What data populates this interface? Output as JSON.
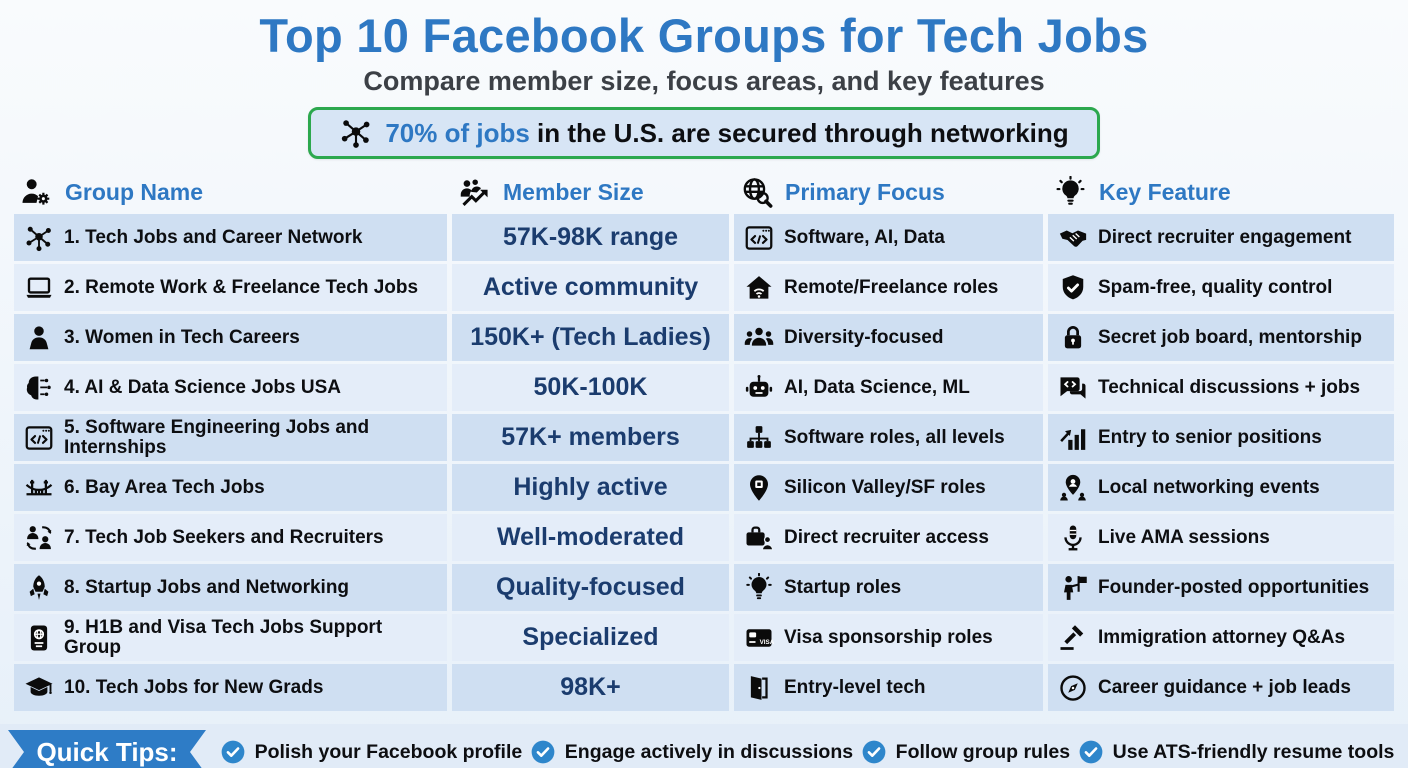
{
  "header": {
    "title": "Top 10 Facebook Groups for Tech Jobs",
    "subtitle": "Compare member size, focus areas, and key features",
    "callout": {
      "icon": "network",
      "highlight": "70% of jobs",
      "rest": " in the U.S. are secured through networking"
    }
  },
  "table": {
    "columns": [
      {
        "label": "Group Name",
        "icon": "user-gear"
      },
      {
        "label": "Member Size",
        "icon": "people-growth"
      },
      {
        "label": "Primary Focus",
        "icon": "globe-search"
      },
      {
        "label": "Key Feature",
        "icon": "lightbulb"
      }
    ],
    "rows": [
      {
        "name": "1. Tech Jobs and Career Network",
        "name_icon": "network",
        "size": "57K-98K range",
        "focus": "Software, AI, Data",
        "focus_icon": "code-window",
        "feature": "Direct recruiter engagement",
        "feature_icon": "handshake"
      },
      {
        "name": "2. Remote Work & Freelance Tech Jobs",
        "name_icon": "laptop",
        "size": "Active community",
        "focus": "Remote/Freelance roles",
        "focus_icon": "house-wifi",
        "feature": "Spam-free, quality control",
        "feature_icon": "shield-check"
      },
      {
        "name": "3. Women in Tech Careers",
        "name_icon": "woman",
        "size": "150K+ (Tech Ladies)",
        "focus": "Diversity-focused",
        "focus_icon": "users-group",
        "feature": "Secret job board, mentorship",
        "feature_icon": "lock"
      },
      {
        "name": "4. AI & Data Science Jobs USA",
        "name_icon": "brain-circuit",
        "size": "50K-100K",
        "focus": "AI, Data Science, ML",
        "focus_icon": "robot",
        "feature": "Technical discussions + jobs",
        "feature_icon": "code-chat"
      },
      {
        "name": "5. Software Engineering Jobs and Internships",
        "name_icon": "code-window",
        "size": "57K+ members",
        "focus": "Software roles, all levels",
        "focus_icon": "org-cubes",
        "feature": "Entry to senior positions",
        "feature_icon": "chart-up"
      },
      {
        "name": "6. Bay Area Tech Jobs",
        "name_icon": "bridge",
        "size": "Highly active",
        "focus": "Silicon Valley/SF roles",
        "focus_icon": "map-pin-chip",
        "feature": "Local networking events",
        "feature_icon": "person-pin-group"
      },
      {
        "name": "7. Tech Job Seekers and Recruiters",
        "name_icon": "people-exchange",
        "size": "Well-moderated",
        "focus": "Direct recruiter access",
        "focus_icon": "briefcase-user",
        "feature": "Live AMA sessions",
        "feature_icon": "microphone"
      },
      {
        "name": "8. Startup Jobs and Networking",
        "name_icon": "rocket",
        "size": "Quality-focused",
        "focus": "Startup roles",
        "focus_icon": "lightbulb",
        "feature": "Founder-posted opportunities",
        "feature_icon": "person-flag"
      },
      {
        "name": "9. H1B and Visa Tech Jobs Support Group",
        "name_icon": "passport",
        "size": "Specialized",
        "focus": "Visa sponsorship roles",
        "focus_icon": "visa-card",
        "feature": "Immigration attorney Q&As",
        "feature_icon": "gavel"
      },
      {
        "name": "10. Tech Jobs for New Grads",
        "name_icon": "grad-cap",
        "size": "98K+",
        "focus": "Entry-level tech",
        "focus_icon": "door-open",
        "feature": "Career guidance + job leads",
        "feature_icon": "compass"
      }
    ]
  },
  "tips": {
    "label": "Quick Tips:",
    "items": [
      "Polish your Facebook profile",
      "Engage actively in discussions",
      "Follow group rules",
      "Use ATS-friendly resume tools"
    ]
  },
  "colors": {
    "accent_blue": "#2e78c3",
    "member_size_navy": "#1b3c6e",
    "callout_green": "#2ca84e",
    "tip_check_blue": "#2e86cb",
    "row_dark": "#cfdff2",
    "row_light": "#e4edf9"
  }
}
